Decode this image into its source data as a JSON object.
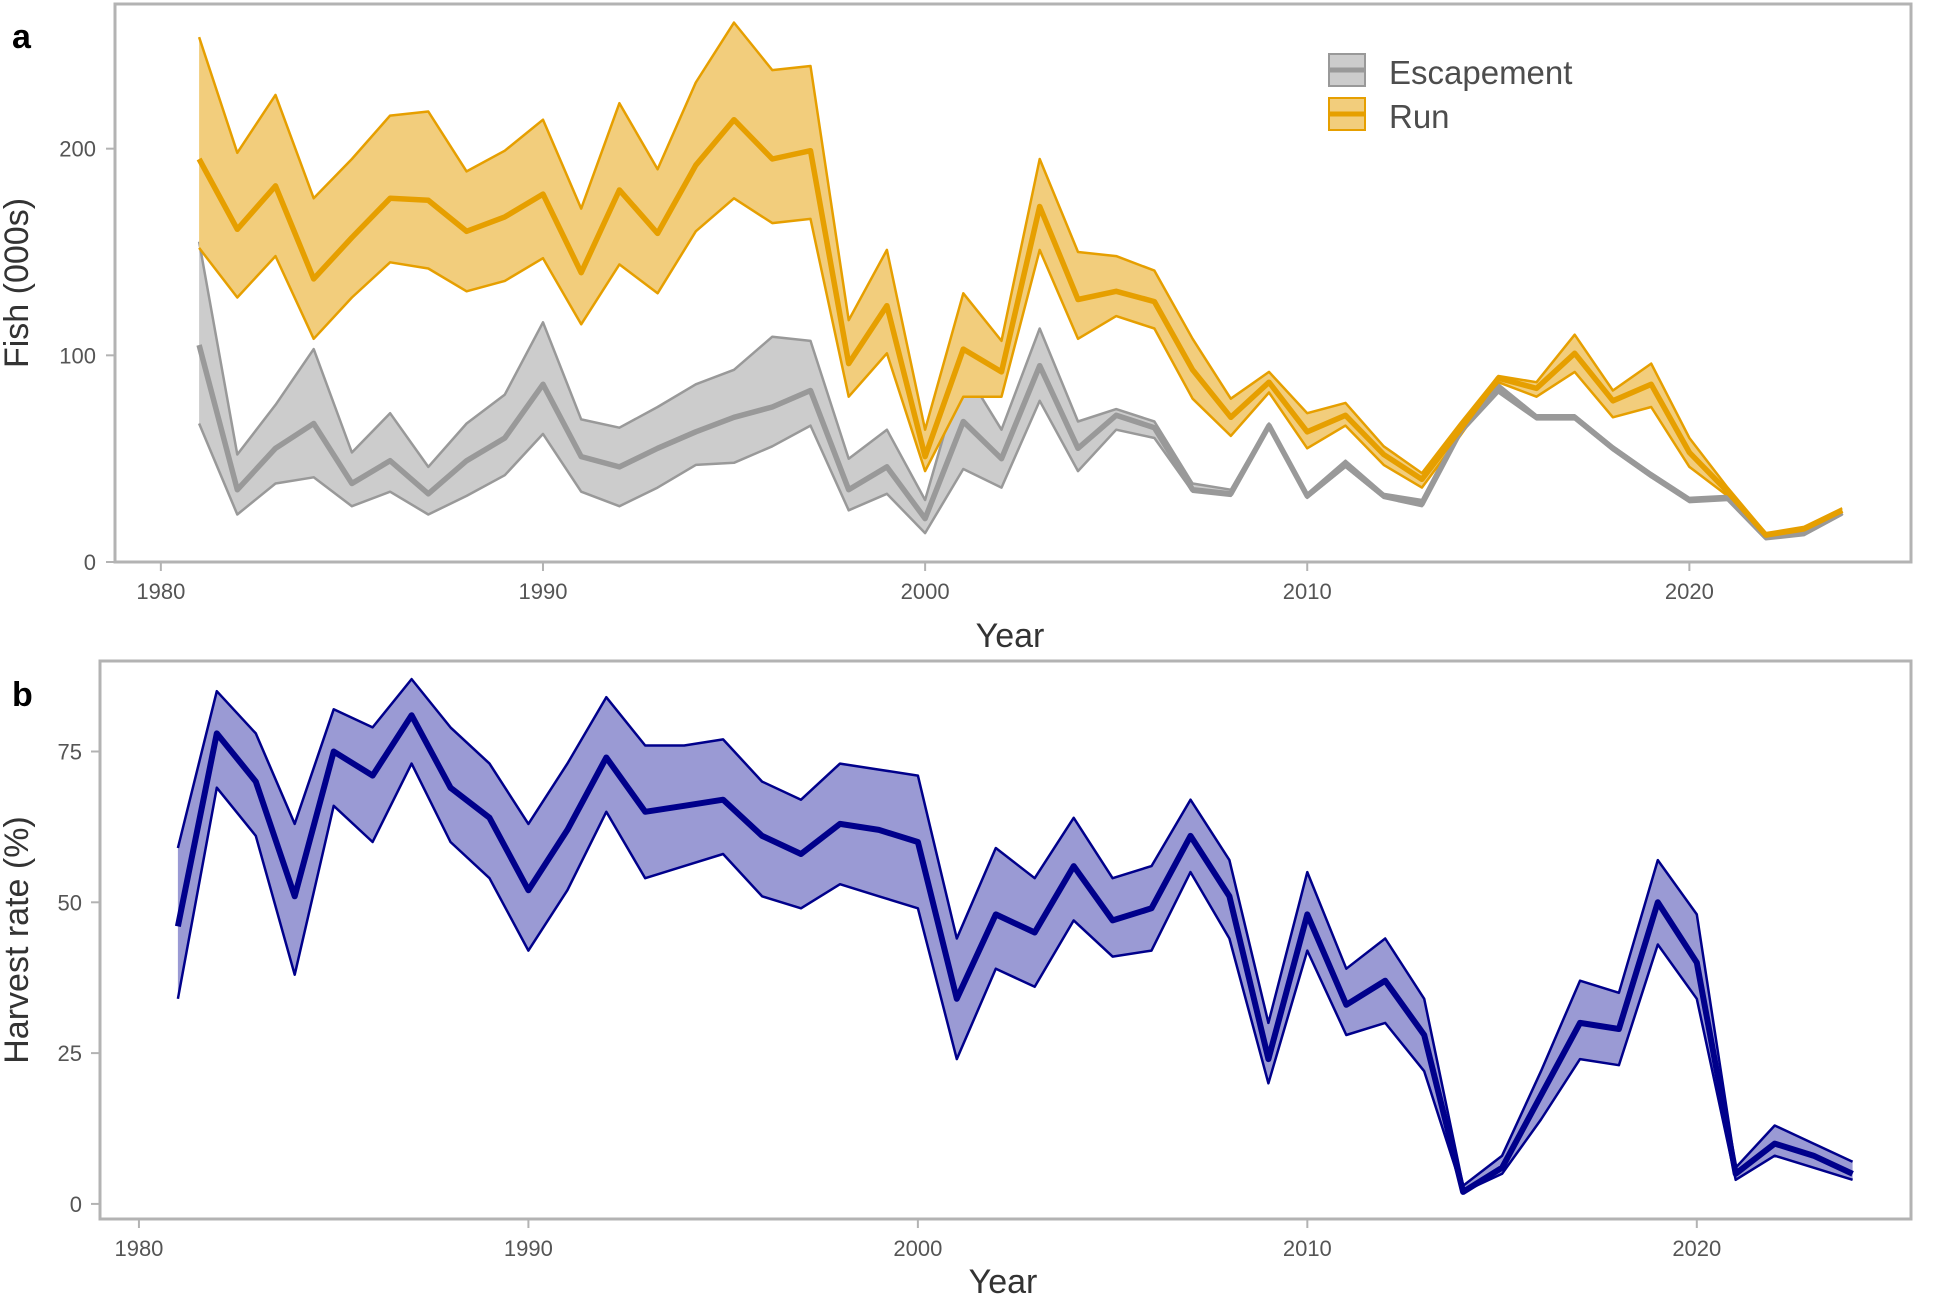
{
  "chart_data": [
    {
      "panel": "a",
      "type": "line",
      "xlabel": "Year",
      "ylabel": "Fish (000s)",
      "xlim": [
        1978.8,
        2025.8
      ],
      "ylim": [
        0,
        270
      ],
      "xticks": [
        1980,
        1990,
        2000,
        2010,
        2020
      ],
      "yticks": [
        0,
        100,
        200
      ],
      "legend_position": "top-right",
      "series": [
        {
          "name": "Escapement",
          "color": "#999999",
          "fill": "#cccccc",
          "x": [
            1981,
            1982,
            1983,
            1984,
            1985,
            1986,
            1987,
            1988,
            1989,
            1990,
            1991,
            1992,
            1993,
            1994,
            1995,
            1996,
            1997,
            1998,
            1999,
            2000,
            2001,
            2002,
            2003,
            2004,
            2005,
            2006,
            2007,
            2008,
            2009,
            2010,
            2011,
            2012,
            2013,
            2014,
            2015,
            2016,
            2017,
            2018,
            2019,
            2020,
            2021,
            2022,
            2023,
            2024
          ],
          "values": [
            105,
            35,
            55,
            67,
            38,
            49,
            33,
            49,
            60,
            86,
            51,
            46,
            55,
            63,
            70,
            75,
            83,
            35,
            46,
            21,
            68,
            50,
            95,
            55,
            71,
            65,
            35,
            33,
            66,
            32,
            47,
            32,
            28,
            63,
            84,
            70,
            70,
            55,
            42,
            30,
            31,
            12,
            14,
            24
          ],
          "lower": [
            67,
            23,
            38,
            41,
            27,
            34,
            23,
            32,
            42,
            62,
            34,
            27,
            36,
            47,
            48,
            56,
            66,
            25,
            33,
            14,
            45,
            36,
            78,
            44,
            64,
            60,
            34,
            32,
            65,
            31,
            46,
            31,
            27,
            62,
            82,
            69,
            69,
            54,
            41,
            29,
            30,
            11,
            13,
            23
          ],
          "upper": [
            155,
            52,
            76,
            103,
            53,
            72,
            46,
            67,
            81,
            116,
            69,
            65,
            75,
            86,
            93,
            109,
            107,
            50,
            64,
            30,
            94,
            64,
            113,
            68,
            74,
            68,
            38,
            35,
            67,
            33,
            49,
            33,
            30,
            65,
            86,
            71,
            71,
            56,
            43,
            31,
            32,
            13,
            15,
            25
          ]
        },
        {
          "name": "Run",
          "color": "#e69f00",
          "fill": "#f2cd7c",
          "x": [
            1981,
            1982,
            1983,
            1984,
            1985,
            1986,
            1987,
            1988,
            1989,
            1990,
            1991,
            1992,
            1993,
            1994,
            1995,
            1996,
            1997,
            1998,
            1999,
            2000,
            2001,
            2002,
            2003,
            2004,
            2005,
            2006,
            2007,
            2008,
            2009,
            2010,
            2011,
            2012,
            2013,
            2014,
            2015,
            2016,
            2017,
            2018,
            2019,
            2020,
            2021,
            2022,
            2023,
            2024
          ],
          "values": [
            195,
            161,
            182,
            137,
            157,
            176,
            175,
            160,
            167,
            178,
            140,
            180,
            159,
            192,
            214,
            195,
            199,
            96,
            124,
            51,
            103,
            92,
            172,
            127,
            131,
            126,
            93,
            70,
            87,
            63,
            71,
            52,
            40,
            64,
            89,
            84,
            101,
            78,
            86,
            53,
            34,
            13,
            16,
            25
          ],
          "lower": [
            152,
            128,
            148,
            108,
            128,
            145,
            142,
            131,
            136,
            147,
            115,
            144,
            130,
            160,
            176,
            164,
            166,
            80,
            101,
            44,
            80,
            80,
            151,
            108,
            119,
            113,
            79,
            61,
            82,
            55,
            66,
            47,
            36,
            61,
            87,
            80,
            92,
            70,
            75,
            46,
            32,
            12,
            15,
            24
          ],
          "upper": [
            254,
            198,
            226,
            176,
            195,
            216,
            218,
            189,
            199,
            214,
            171,
            222,
            190,
            232,
            261,
            238,
            240,
            117,
            151,
            64,
            130,
            107,
            195,
            150,
            148,
            141,
            108,
            79,
            92,
            72,
            77,
            56,
            43,
            67,
            90,
            87,
            110,
            83,
            96,
            60,
            36,
            14,
            17,
            26
          ]
        }
      ]
    },
    {
      "panel": "b",
      "type": "line",
      "xlabel": "Year",
      "ylabel": "Harvest rate (%)",
      "xlim": [
        1979,
        2025.5
      ],
      "ylim": [
        -2.5,
        90
      ],
      "xticks": [
        1980,
        1990,
        2000,
        2010,
        2020
      ],
      "yticks": [
        0,
        25,
        50,
        75
      ],
      "series": [
        {
          "name": "",
          "color": "#00008b",
          "fill": "#9a9ad4",
          "x": [
            1981,
            1982,
            1983,
            1984,
            1985,
            1986,
            1987,
            1988,
            1989,
            1990,
            1991,
            1992,
            1993,
            1994,
            1995,
            1996,
            1997,
            1998,
            1999,
            2000,
            2001,
            2002,
            2003,
            2004,
            2005,
            2006,
            2007,
            2008,
            2009,
            2010,
            2011,
            2012,
            2013,
            2014,
            2015,
            2016,
            2017,
            2018,
            2019,
            2020,
            2021,
            2022,
            2023,
            2024
          ],
          "values": [
            46,
            78,
            70,
            51,
            75,
            71,
            81,
            69,
            64,
            52,
            62,
            74,
            65,
            66,
            67,
            61,
            58,
            63,
            62,
            60,
            34,
            48,
            45,
            56,
            47,
            49,
            61,
            51,
            24,
            48,
            33,
            37,
            28,
            2,
            6,
            18,
            30,
            29,
            50,
            40,
            5,
            10,
            8,
            5
          ],
          "lower": [
            34,
            69,
            61,
            38,
            66,
            60,
            73,
            60,
            54,
            42,
            52,
            65,
            54,
            56,
            58,
            51,
            49,
            53,
            51,
            49,
            24,
            39,
            36,
            47,
            41,
            42,
            55,
            44,
            20,
            42,
            28,
            30,
            22,
            2,
            5,
            14,
            24,
            23,
            43,
            34,
            4,
            8,
            6,
            4
          ],
          "upper": [
            59,
            85,
            78,
            63,
            82,
            79,
            87,
            79,
            73,
            63,
            73,
            84,
            76,
            76,
            77,
            70,
            67,
            73,
            72,
            71,
            44,
            59,
            54,
            64,
            54,
            56,
            67,
            57,
            30,
            55,
            39,
            44,
            34,
            3,
            8,
            22,
            37,
            35,
            57,
            48,
            6,
            13,
            10,
            7
          ]
        }
      ]
    }
  ]
}
